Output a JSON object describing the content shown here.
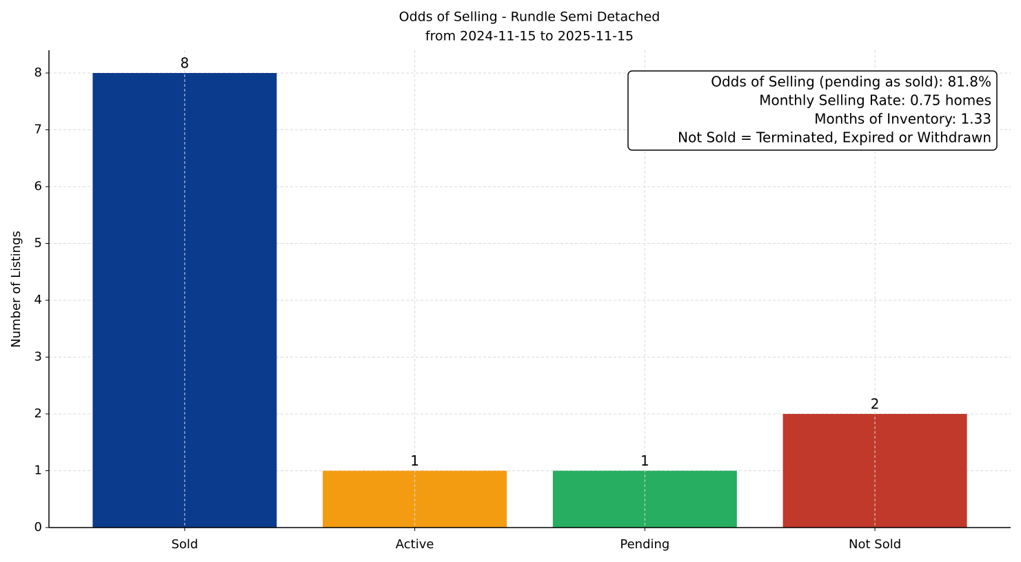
{
  "chart_data": {
    "type": "bar",
    "title": "Odds of Selling - Rundle Semi Detached",
    "subtitle": "from 2024-11-15 to 2025-11-15",
    "ylabel": "Number of Listings",
    "categories": [
      "Sold",
      "Active",
      "Pending",
      "Not Sold"
    ],
    "values": [
      8,
      1,
      1,
      2
    ],
    "colors": [
      "#0b3b8c",
      "#f39c12",
      "#27ae60",
      "#c0392b"
    ],
    "ylim": [
      0,
      8.4
    ],
    "yticks": [
      0,
      1,
      2,
      3,
      4,
      5,
      6,
      7,
      8
    ],
    "grid": true,
    "annotation": [
      "Odds of Selling (pending as sold): 81.8%",
      "Monthly Selling Rate: 0.75 homes",
      "Months of Inventory: 1.33",
      "Not Sold = Terminated, Expired or Withdrawn"
    ]
  }
}
